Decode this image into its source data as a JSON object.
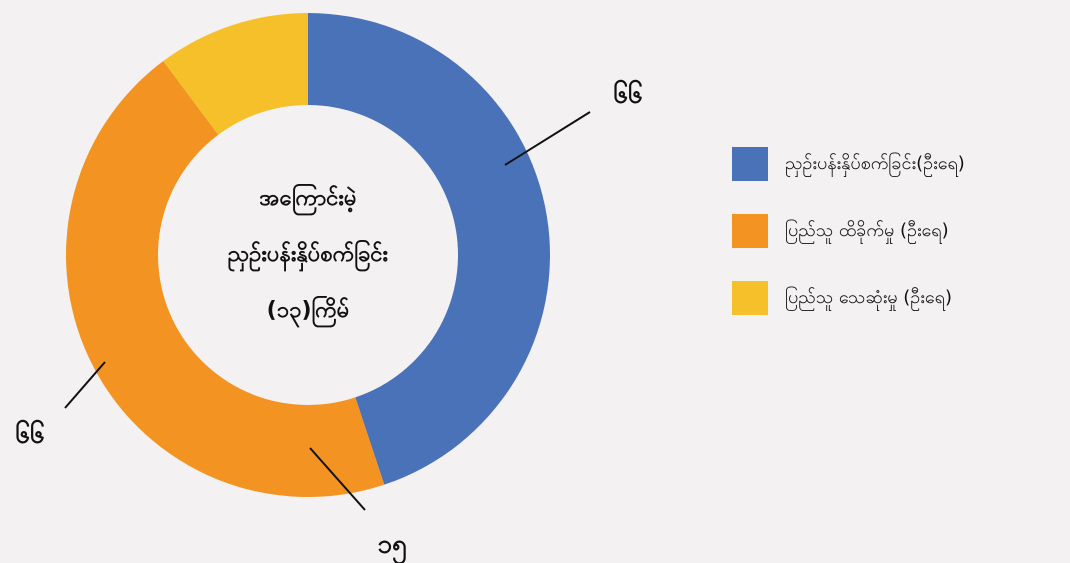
{
  "chart_data": {
    "type": "donut",
    "title": [
      "အကြောင်းမဲ့",
      "ညှဉ်းပန်းနှိပ်စက်ခြင်း",
      "(၁၃)ကြိမ်"
    ],
    "categories": [
      "ညှဉ်းပန်းနှိပ်စက်ခြင်း(ဦးရေ)",
      "ပြည်သူ ထိခိုက်မှု (ဦးရေ)",
      "ပြည်သူ သေဆုံးမှု (ဦးရေ)"
    ],
    "values": [
      66,
      66,
      15
    ],
    "value_labels": [
      "၆၆",
      "၆၆",
      "၁၅"
    ],
    "colors": [
      "#4a72b8",
      "#f39422",
      "#f5c02a"
    ],
    "legend": "right"
  }
}
